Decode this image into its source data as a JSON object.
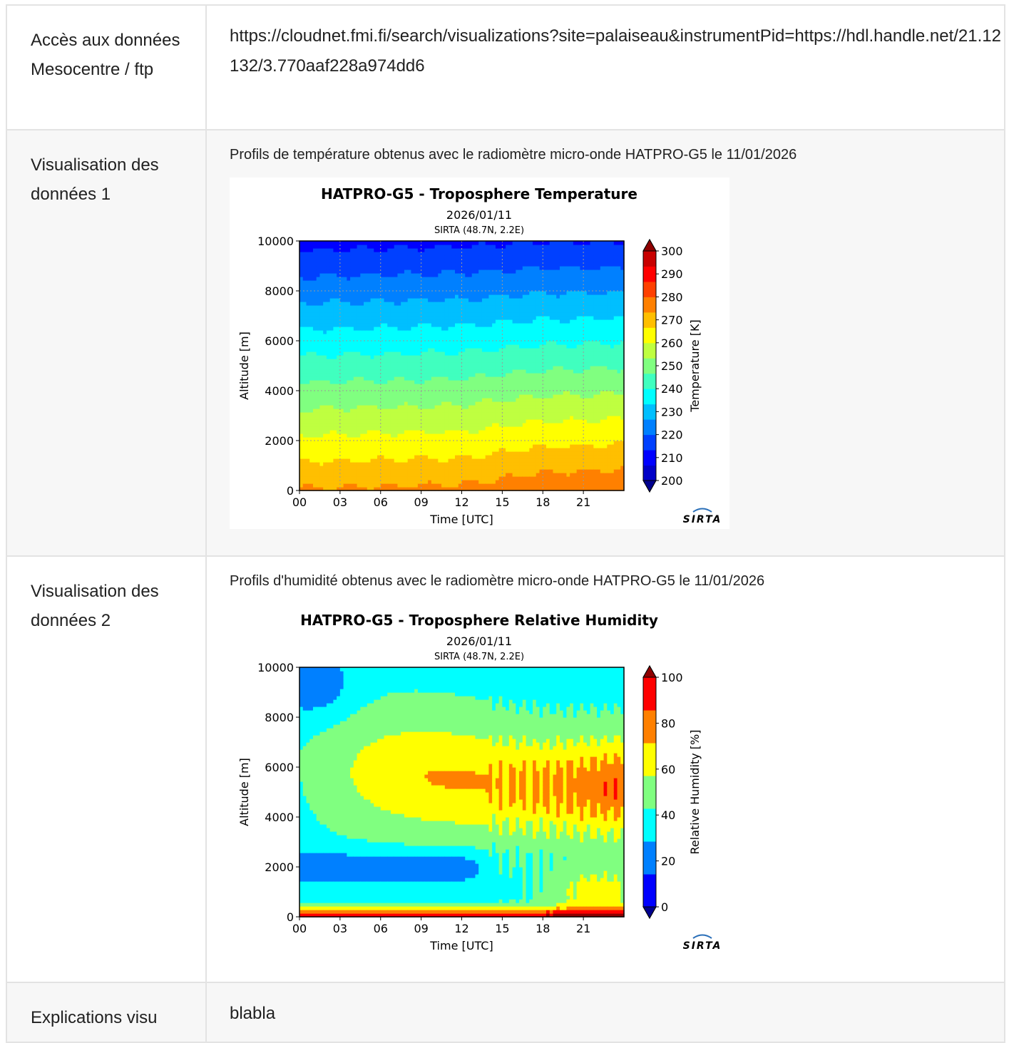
{
  "rows": {
    "access": {
      "label": "Accès aux données Mesocentre / ftp",
      "value": "https://cloudnet.fmi.fi/search/visualizations?site=palaiseau&instrumentPid=https://hdl.handle.net/21.12132/3.770aaf228a974dd6"
    },
    "visu1": {
      "label": "Visualisation des données 1",
      "caption": "Profils de température obtenus avec le radiomètre micro-onde HATPRO-G5 le 11/01/2026"
    },
    "visu2": {
      "label": "Visualisation des données 2",
      "caption": "Profils d'humidité obtenus avec le radiomètre micro-onde HATPRO-G5 le 11/01/2026"
    },
    "explain": {
      "label": "Explications visu",
      "value": "blabla"
    }
  },
  "logo_text": "SIRTA",
  "chart_data": [
    {
      "type": "heatmap",
      "title": "HATPRO-G5 - Troposphere Temperature",
      "subtitle": "2026/01/11",
      "subtitle2": "SIRTA (48.7N, 2.2E)",
      "xlabel": "Time [UTC]",
      "ylabel": "Altitude [m]",
      "x_ticks": [
        "00",
        "03",
        "06",
        "09",
        "12",
        "15",
        "18",
        "21"
      ],
      "xlim": [
        0,
        24
      ],
      "y_ticks": [
        "0",
        "2000",
        "4000",
        "6000",
        "8000",
        "10000"
      ],
      "ylim": [
        0,
        10000
      ],
      "grid": true,
      "colorbar": {
        "label": "Temperature [K]",
        "ticks": [
          "200",
          "210",
          "220",
          "230",
          "240",
          "250",
          "260",
          "270",
          "280",
          "290",
          "300"
        ],
        "range": [
          200,
          300
        ],
        "extend": "both"
      },
      "colors": [
        "#00008f",
        "#0000c8",
        "#0000ff",
        "#0040ff",
        "#0080ff",
        "#00bfff",
        "#00ffff",
        "#40ffbf",
        "#80ff80",
        "#bfff40",
        "#ffff00",
        "#ffbf00",
        "#ff8000",
        "#ff4000",
        "#ff0000",
        "#c80000",
        "#8f0000"
      ],
      "profiles": [
        {
          "time": 0,
          "surface_temp": 274,
          "lapse": 0.0063
        },
        {
          "time": 12,
          "surface_temp": 275,
          "lapse": 0.0063
        },
        {
          "time": 18,
          "surface_temp": 278,
          "lapse": 0.0065
        },
        {
          "time": 24,
          "surface_temp": 279,
          "lapse": 0.0066
        }
      ]
    },
    {
      "type": "heatmap",
      "title": "HATPRO-G5 - Troposphere Relative Humidity",
      "subtitle": "2026/01/11",
      "subtitle2": "SIRTA (48.7N, 2.2E)",
      "xlabel": "Time [UTC]",
      "ylabel": "Altitude [m]",
      "x_ticks": [
        "00",
        "03",
        "06",
        "09",
        "12",
        "15",
        "18",
        "21"
      ],
      "xlim": [
        0,
        24
      ],
      "y_ticks": [
        "0",
        "2000",
        "4000",
        "6000",
        "8000",
        "10000"
      ],
      "ylim": [
        0,
        10000
      ],
      "grid": false,
      "colorbar": {
        "label": "Relative Humidity [%]",
        "ticks": [
          "0",
          "20",
          "40",
          "60",
          "80",
          "100"
        ],
        "range": [
          0,
          100
        ],
        "extend": "both"
      },
      "colors": [
        "#00008f",
        "#0000ff",
        "#0080ff",
        "#00ffff",
        "#80ff80",
        "#ffff00",
        "#ff8000",
        "#ff0000",
        "#8f0000"
      ],
      "features": [
        {
          "name": "dry-upper-early",
          "time": [
            0,
            3
          ],
          "alt": [
            8000,
            10000
          ],
          "rh": 10
        },
        {
          "name": "dry-low-band",
          "time": [
            0,
            12
          ],
          "alt": [
            1500,
            2500
          ],
          "rh": 15
        },
        {
          "name": "moist-core",
          "time": [
            9,
            22
          ],
          "alt": [
            3500,
            6500
          ],
          "rh": 80
        },
        {
          "name": "saturated-surface",
          "time": [
            0,
            24
          ],
          "alt": [
            0,
            300
          ],
          "rh": 95
        }
      ]
    }
  ]
}
